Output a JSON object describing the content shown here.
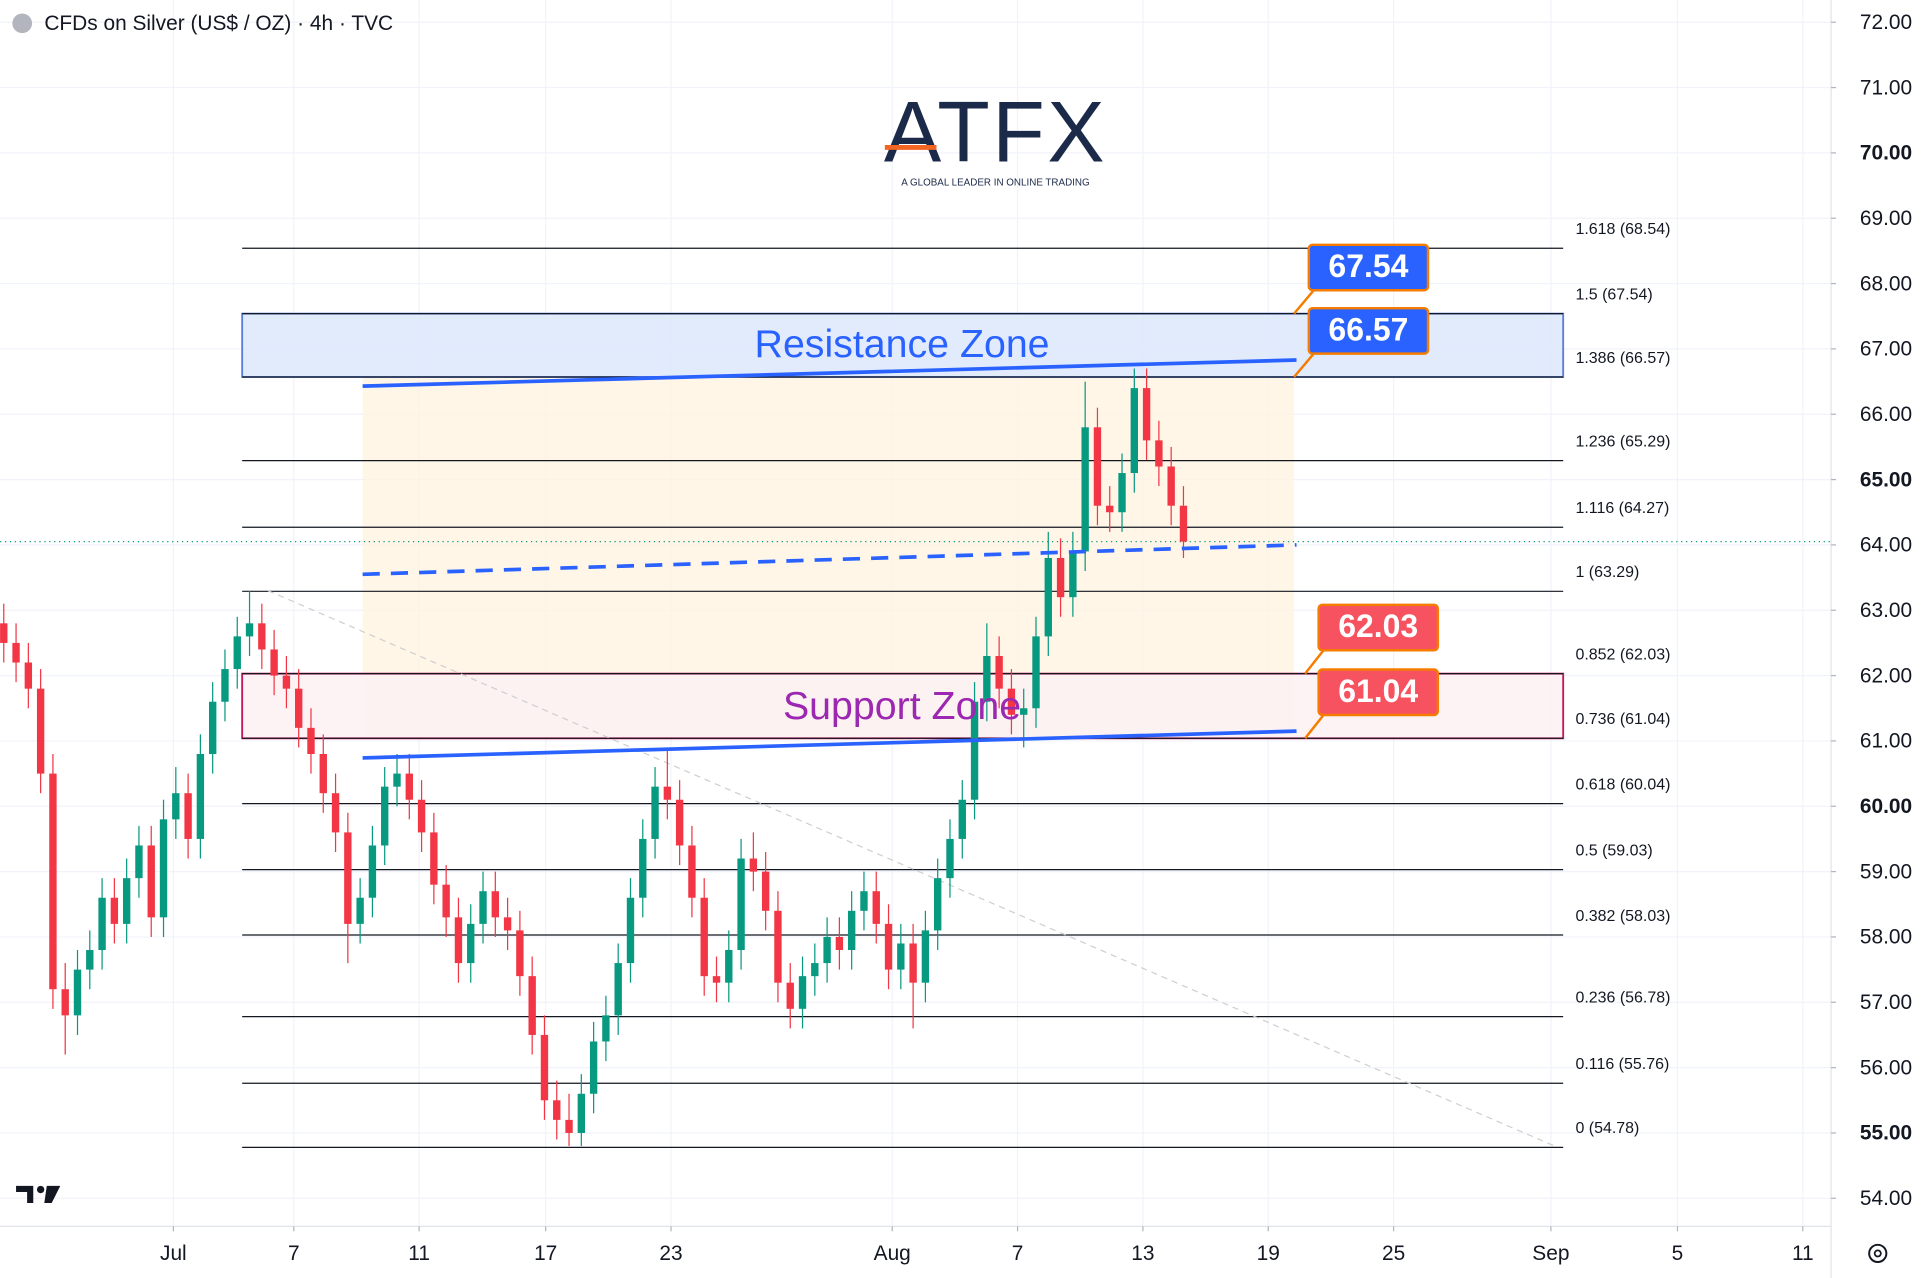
{
  "chart_data": {
    "type": "candlestick",
    "title": "CFDs on Silver (US$ / OZ) · 4h · TVC",
    "logo": {
      "name": "ATFX",
      "tagline": "A GLOBAL LEADER IN ONLINE TRADING"
    },
    "up_color": "#089981",
    "down_color": "#f23645",
    "grid": true,
    "ylim": [
      53.57,
      72.34
    ],
    "yticks": [
      {
        "value": 54,
        "label": "54.00"
      },
      {
        "value": 55,
        "label": "55.00"
      },
      {
        "value": 56,
        "label": "56.00"
      },
      {
        "value": 57,
        "label": "57.00"
      },
      {
        "value": 58,
        "label": "58.00"
      },
      {
        "value": 59,
        "label": "59.00"
      },
      {
        "value": 60,
        "label": "60.00"
      },
      {
        "value": 61,
        "label": "61.00"
      },
      {
        "value": 62,
        "label": "62.00"
      },
      {
        "value": 63,
        "label": "63.00"
      },
      {
        "value": 64,
        "label": "64.00"
      },
      {
        "value": 65,
        "label": "65.00"
      },
      {
        "value": 66,
        "label": "66.00"
      },
      {
        "value": 67,
        "label": "67.00"
      },
      {
        "value": 68,
        "label": "68.00"
      },
      {
        "value": 69,
        "label": "69.00"
      },
      {
        "value": 70,
        "label": "70.00"
      },
      {
        "value": 71,
        "label": "71.00"
      },
      {
        "value": 72,
        "label": "72.00"
      }
    ],
    "xlim": [
      -0.3,
      148.7
    ],
    "xticks": [
      {
        "value": 13.8,
        "label": "Jul"
      },
      {
        "value": 23.6,
        "label": "7"
      },
      {
        "value": 33.8,
        "label": "11"
      },
      {
        "value": 44.1,
        "label": "17"
      },
      {
        "value": 54.3,
        "label": "23"
      },
      {
        "value": 72.3,
        "label": "Aug"
      },
      {
        "value": 82.5,
        "label": "7"
      },
      {
        "value": 92.7,
        "label": "13"
      },
      {
        "value": 102.9,
        "label": "19"
      },
      {
        "value": 113.1,
        "label": "25"
      },
      {
        "value": 125.9,
        "label": "Sep"
      },
      {
        "value": 136.2,
        "label": "5"
      },
      {
        "value": 146.4,
        "label": "11"
      }
    ],
    "candles": [
      [
        62.8,
        63.1,
        62.2,
        62.5
      ],
      [
        62.5,
        62.8,
        61.9,
        62.2
      ],
      [
        62.2,
        62.5,
        61.5,
        61.8
      ],
      [
        61.8,
        62.1,
        60.2,
        60.5
      ],
      [
        60.5,
        60.8,
        56.9,
        57.2
      ],
      [
        57.2,
        57.6,
        56.2,
        56.8
      ],
      [
        56.8,
        57.8,
        56.5,
        57.5
      ],
      [
        57.5,
        58.1,
        57.2,
        57.8
      ],
      [
        57.8,
        58.9,
        57.5,
        58.6
      ],
      [
        58.6,
        58.9,
        57.9,
        58.2
      ],
      [
        58.2,
        59.2,
        57.9,
        58.9
      ],
      [
        58.9,
        59.7,
        58.6,
        59.4
      ],
      [
        59.4,
        59.7,
        58.0,
        58.3
      ],
      [
        58.3,
        60.1,
        58.0,
        59.8
      ],
      [
        59.8,
        60.6,
        59.5,
        60.2
      ],
      [
        60.2,
        60.5,
        59.2,
        59.5
      ],
      [
        59.5,
        61.1,
        59.2,
        60.8
      ],
      [
        60.8,
        61.9,
        60.5,
        61.6
      ],
      [
        61.6,
        62.4,
        61.3,
        62.1
      ],
      [
        62.1,
        62.9,
        61.8,
        62.6
      ],
      [
        62.6,
        63.3,
        62.3,
        62.8
      ],
      [
        62.8,
        63.1,
        62.1,
        62.4
      ],
      [
        62.4,
        62.7,
        61.7,
        62.0
      ],
      [
        62.0,
        62.3,
        61.5,
        61.8
      ],
      [
        61.8,
        62.1,
        60.9,
        61.2
      ],
      [
        61.2,
        61.5,
        60.5,
        60.8
      ],
      [
        60.8,
        61.1,
        59.9,
        60.2
      ],
      [
        60.2,
        60.5,
        59.3,
        59.6
      ],
      [
        59.6,
        59.9,
        57.6,
        58.2
      ],
      [
        58.2,
        58.9,
        57.9,
        58.6
      ],
      [
        58.6,
        59.7,
        58.3,
        59.4
      ],
      [
        59.4,
        60.6,
        59.1,
        60.3
      ],
      [
        60.3,
        60.8,
        60.0,
        60.5
      ],
      [
        60.5,
        60.8,
        59.8,
        60.1
      ],
      [
        60.1,
        60.4,
        59.3,
        59.6
      ],
      [
        59.6,
        59.9,
        58.5,
        58.8
      ],
      [
        58.8,
        59.1,
        58.0,
        58.3
      ],
      [
        58.3,
        58.6,
        57.3,
        57.6
      ],
      [
        57.6,
        58.5,
        57.3,
        58.2
      ],
      [
        58.2,
        59.0,
        57.9,
        58.7
      ],
      [
        58.7,
        59.0,
        58.0,
        58.3
      ],
      [
        58.3,
        58.6,
        57.8,
        58.1
      ],
      [
        58.1,
        58.4,
        57.1,
        57.4
      ],
      [
        57.4,
        57.7,
        56.2,
        56.5
      ],
      [
        56.5,
        56.8,
        55.2,
        55.5
      ],
      [
        55.5,
        55.8,
        54.9,
        55.2
      ],
      [
        55.2,
        55.6,
        54.8,
        55.0
      ],
      [
        55.0,
        55.9,
        54.8,
        55.6
      ],
      [
        55.6,
        56.7,
        55.3,
        56.4
      ],
      [
        56.4,
        57.1,
        56.1,
        56.8
      ],
      [
        56.8,
        57.9,
        56.5,
        57.6
      ],
      [
        57.6,
        58.9,
        57.3,
        58.6
      ],
      [
        58.6,
        59.8,
        58.3,
        59.5
      ],
      [
        59.5,
        60.6,
        59.2,
        60.3
      ],
      [
        60.3,
        60.9,
        59.8,
        60.1
      ],
      [
        60.1,
        60.4,
        59.1,
        59.4
      ],
      [
        59.4,
        59.7,
        58.3,
        58.6
      ],
      [
        58.6,
        58.9,
        57.1,
        57.4
      ],
      [
        57.4,
        57.7,
        57.0,
        57.3
      ],
      [
        57.3,
        58.1,
        57.0,
        57.8
      ],
      [
        57.8,
        59.5,
        57.5,
        59.2
      ],
      [
        59.2,
        59.6,
        58.7,
        59.0
      ],
      [
        59.0,
        59.3,
        58.1,
        58.4
      ],
      [
        58.4,
        58.7,
        57.0,
        57.3
      ],
      [
        57.3,
        57.6,
        56.6,
        56.9
      ],
      [
        56.9,
        57.7,
        56.6,
        57.4
      ],
      [
        57.4,
        57.9,
        57.1,
        57.6
      ],
      [
        57.6,
        58.3,
        57.3,
        58.0
      ],
      [
        58.0,
        58.3,
        57.5,
        57.8
      ],
      [
        57.8,
        58.7,
        57.5,
        58.4
      ],
      [
        58.4,
        59.0,
        58.1,
        58.7
      ],
      [
        58.7,
        59.0,
        57.9,
        58.2
      ],
      [
        58.2,
        58.5,
        57.2,
        57.5
      ],
      [
        57.5,
        58.2,
        57.2,
        57.9
      ],
      [
        57.9,
        58.2,
        56.6,
        57.3
      ],
      [
        57.3,
        58.4,
        57.0,
        58.1
      ],
      [
        58.1,
        59.2,
        57.8,
        58.9
      ],
      [
        58.9,
        59.8,
        58.6,
        59.5
      ],
      [
        59.5,
        60.4,
        59.2,
        60.1
      ],
      [
        60.1,
        61.9,
        59.8,
        61.6
      ],
      [
        61.6,
        62.8,
        61.3,
        62.3
      ],
      [
        62.3,
        62.6,
        61.5,
        61.8
      ],
      [
        61.8,
        62.1,
        61.1,
        61.4
      ],
      [
        61.4,
        61.8,
        60.9,
        61.5
      ],
      [
        61.5,
        62.9,
        61.2,
        62.6
      ],
      [
        62.6,
        64.2,
        62.3,
        63.8
      ],
      [
        63.8,
        64.1,
        62.9,
        63.2
      ],
      [
        63.2,
        64.2,
        62.9,
        63.9
      ],
      [
        63.9,
        66.5,
        63.6,
        65.8
      ],
      [
        65.8,
        66.1,
        64.3,
        64.6
      ],
      [
        64.6,
        64.9,
        64.2,
        64.5
      ],
      [
        64.5,
        65.4,
        64.2,
        65.1
      ],
      [
        65.1,
        66.7,
        64.8,
        66.4
      ],
      [
        66.4,
        66.7,
        65.3,
        65.6
      ],
      [
        65.6,
        65.9,
        64.9,
        65.2
      ],
      [
        65.2,
        65.5,
        64.3,
        64.6
      ],
      [
        64.6,
        64.9,
        63.8,
        64.05
      ]
    ],
    "last_price": 64.05,
    "fib_levels": [
      {
        "value": 68.54,
        "label": "1.618 (68.54)"
      },
      {
        "value": 67.54,
        "label": "1.5 (67.54)"
      },
      {
        "value": 66.57,
        "label": "1.386 (66.57)"
      },
      {
        "value": 65.29,
        "label": "1.236 (65.29)"
      },
      {
        "value": 64.27,
        "label": "1.116 (64.27)"
      },
      {
        "value": 63.29,
        "label": "1 (63.29)"
      },
      {
        "value": 62.03,
        "label": "0.852 (62.03)"
      },
      {
        "value": 61.04,
        "label": "0.736 (61.04)"
      },
      {
        "value": 60.04,
        "label": "0.618 (60.04)"
      },
      {
        "value": 59.03,
        "label": "0.5 (59.03)"
      },
      {
        "value": 58.03,
        "label": "0.382 (58.03)"
      },
      {
        "value": 56.78,
        "label": "0.236 (56.78)"
      },
      {
        "value": 55.76,
        "label": "0.116 (55.76)"
      },
      {
        "value": 54.78,
        "label": "0 (54.78)"
      }
    ],
    "zones": [
      {
        "label": "Resistance Zone",
        "range": [
          66.57,
          67.54
        ],
        "fill": "#dde8fb",
        "stroke": "#5b7fd6",
        "text_color": "#2962ff"
      },
      {
        "label": "Support Zone",
        "range": [
          61.04,
          62.03
        ],
        "fill": "#fdf1f3",
        "stroke": "#c2185b",
        "text_color": "#9c27b0"
      }
    ],
    "highlight_range": [
      61.04,
      66.57
    ],
    "trendlines": [
      {
        "values": [
          66.43,
          66.83
        ],
        "color": "#2962ff",
        "dashed": false
      },
      {
        "values": [
          60.74,
          61.15
        ],
        "color": "#2962ff",
        "dashed": false
      },
      {
        "values": [
          63.55,
          64.0
        ],
        "color": "#2962ff",
        "dashed": true
      },
      {
        "values": [
          63.3,
          54.8
        ],
        "color": "#cfcfcf",
        "dashed": true
      }
    ],
    "callouts": [
      {
        "value": 67.54,
        "color": "#2962ff"
      },
      {
        "value": 66.57,
        "color": "#2962ff"
      },
      {
        "value": 62.03,
        "color": "#f7525f"
      },
      {
        "value": 61.04,
        "color": "#f7525f"
      }
    ]
  }
}
